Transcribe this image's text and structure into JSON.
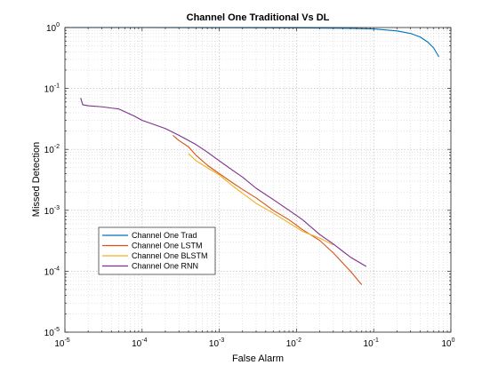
{
  "chart_data": {
    "type": "line",
    "title": "Channel One Traditional Vs DL",
    "xlabel": "False Alarm",
    "ylabel": "Missed Detection",
    "xscale": "log",
    "yscale": "log",
    "xlim": [
      1e-05,
      1
    ],
    "ylim": [
      1e-05,
      1
    ],
    "grid": "major and minor, dotted",
    "legend_position": "lower-left",
    "xticks": [
      {
        "base": "10",
        "exp": "-5"
      },
      {
        "base": "10",
        "exp": "-4"
      },
      {
        "base": "10",
        "exp": "-3"
      },
      {
        "base": "10",
        "exp": "-2"
      },
      {
        "base": "10",
        "exp": "-1"
      },
      {
        "base": "10",
        "exp": "0"
      }
    ],
    "yticks": [
      {
        "base": "10",
        "exp": "-5"
      },
      {
        "base": "10",
        "exp": "-4"
      },
      {
        "base": "10",
        "exp": "-3"
      },
      {
        "base": "10",
        "exp": "-2"
      },
      {
        "base": "10",
        "exp": "-1"
      },
      {
        "base": "10",
        "exp": "0"
      }
    ],
    "series": [
      {
        "name": "Channel One Trad",
        "color": "#0072BD",
        "x": [
          1e-05,
          0.0001,
          0.001,
          0.01,
          0.05,
          0.1,
          0.2,
          0.3,
          0.4,
          0.5,
          0.6,
          0.7
        ],
        "y": [
          1.0,
          1.0,
          0.995,
          0.985,
          0.97,
          0.95,
          0.88,
          0.8,
          0.7,
          0.58,
          0.46,
          0.33
        ]
      },
      {
        "name": "Channel One LSTM",
        "color": "#D95319",
        "x": [
          0.00025,
          0.0003,
          0.0004,
          0.0005,
          0.0007,
          0.001,
          0.0015,
          0.002,
          0.003,
          0.005,
          0.008,
          0.012,
          0.02,
          0.03,
          0.05,
          0.07
        ],
        "y": [
          0.017,
          0.014,
          0.011,
          0.008,
          0.0055,
          0.004,
          0.0028,
          0.0022,
          0.0016,
          0.001,
          0.0007,
          0.00048,
          0.00032,
          0.0002,
          0.0001,
          6e-05
        ]
      },
      {
        "name": "Channel One BLSTM",
        "color": "#EDB120",
        "x": [
          0.0004,
          0.0005,
          0.0007,
          0.001,
          0.0015,
          0.002,
          0.003,
          0.005,
          0.008,
          0.012,
          0.02,
          0.03
        ],
        "y": [
          0.0085,
          0.0065,
          0.005,
          0.0038,
          0.0025,
          0.0019,
          0.0013,
          0.0009,
          0.00062,
          0.00045,
          0.00035,
          0.00027
        ]
      },
      {
        "name": "Channel One RNN",
        "color": "#7E2F8E",
        "x": [
          1.6e-05,
          1.7e-05,
          2e-05,
          3e-05,
          5e-05,
          8e-05,
          0.0001,
          0.00015,
          0.0002,
          0.0003,
          0.0005,
          0.0007,
          0.001,
          0.0015,
          0.002,
          0.003,
          0.005,
          0.008,
          0.012,
          0.02,
          0.03,
          0.05,
          0.08
        ],
        "y": [
          0.07,
          0.054,
          0.052,
          0.05,
          0.046,
          0.035,
          0.03,
          0.025,
          0.022,
          0.017,
          0.012,
          0.009,
          0.0065,
          0.0045,
          0.0035,
          0.0023,
          0.0015,
          0.001,
          0.0007,
          0.0004,
          0.00028,
          0.00017,
          0.00012
        ]
      }
    ]
  }
}
